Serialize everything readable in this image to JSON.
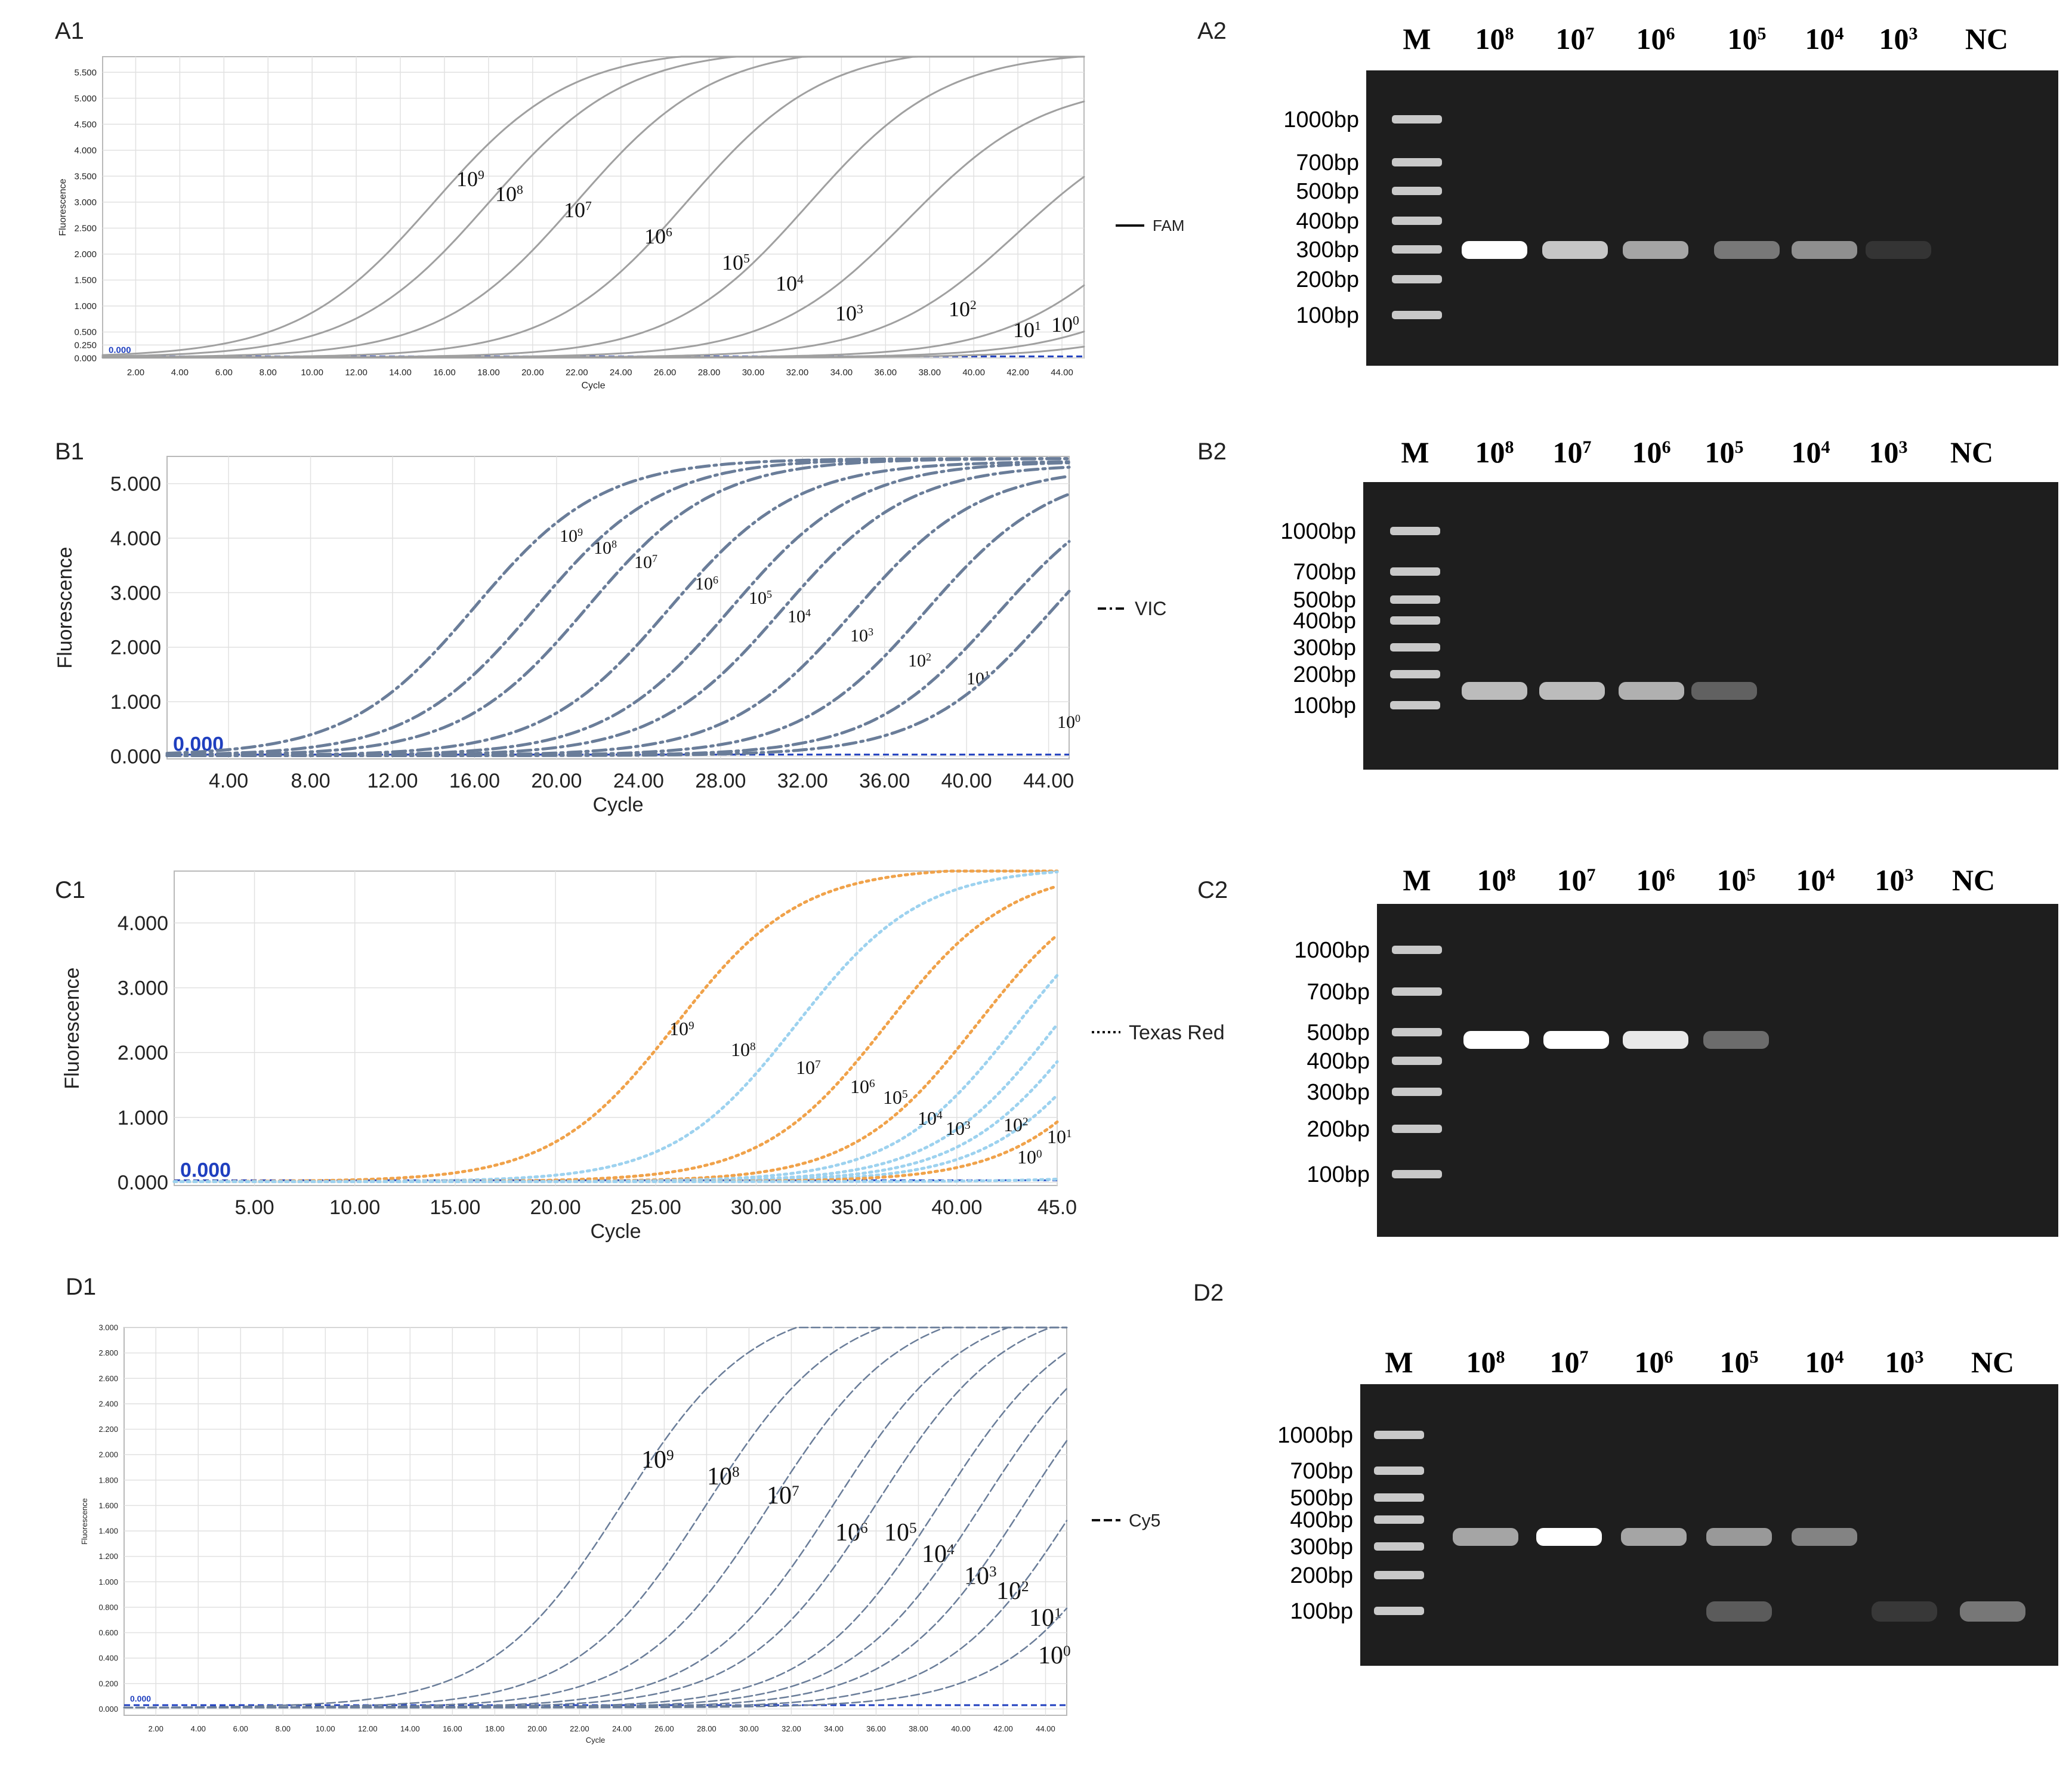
{
  "panels": {
    "A1": "A1",
    "A2": "A2",
    "B1": "B1",
    "B2": "B2",
    "C1": "C1",
    "C2": "C2",
    "D1": "D1",
    "D2": "D2"
  },
  "chart_data": [
    {
      "id": "A1",
      "type": "line",
      "title": "",
      "xlabel": "Cycle",
      "ylabel": "Fluorescence",
      "xlim": [
        0.5,
        45
      ],
      "ylim": [
        0,
        5.8
      ],
      "xticks": [
        "2.00",
        "4.00",
        "6.00",
        "8.00",
        "10.00",
        "12.00",
        "14.00",
        "16.00",
        "18.00",
        "20.00",
        "22.00",
        "24.00",
        "26.00",
        "28.00",
        "30.00",
        "32.00",
        "34.00",
        "36.00",
        "38.00",
        "40.00",
        "42.00",
        "44.00"
      ],
      "yticks": [
        "0.000",
        "0.250",
        "0.500",
        "1.000",
        "1.500",
        "2.000",
        "2.500",
        "3.000",
        "3.500",
        "4.000",
        "4.500",
        "5.000",
        "5.500"
      ],
      "threshold_label": "0.000",
      "legend": {
        "name": "FAM",
        "style": "solid",
        "position": "right"
      },
      "style": "solid",
      "color": "#a0a0a0",
      "grid": true,
      "series": [
        {
          "label": "9",
          "mid": 15.5,
          "max": 5.95
        },
        {
          "label": "8",
          "mid": 18.0,
          "max": 5.95
        },
        {
          "label": "7",
          "mid": 22.0,
          "max": 6.0
        },
        {
          "label": "6",
          "mid": 27.0,
          "max": 6.0
        },
        {
          "label": "5",
          "mid": 32.5,
          "max": 5.9
        },
        {
          "label": "4",
          "mid": 37.0,
          "max": 5.3
        },
        {
          "label": "3",
          "mid": 42.0,
          "max": 4.8
        },
        {
          "label": "2",
          "mid": 47.5,
          "max": 4.5
        },
        {
          "label": "1",
          "mid": 50.0,
          "max": 3.0
        },
        {
          "label": "0",
          "mid": 52.0,
          "max": 2.2
        }
      ]
    },
    {
      "id": "B1",
      "type": "line",
      "title": "",
      "xlabel": "Cycle",
      "ylabel": "Fluorescence",
      "xlim": [
        1,
        45
      ],
      "ylim": [
        -0.05,
        5.5
      ],
      "xticks": [
        "4.00",
        "8.00",
        "12.00",
        "16.00",
        "20.00",
        "24.00",
        "28.00",
        "32.00",
        "36.00",
        "40.00",
        "44.00"
      ],
      "yticks": [
        "0.000",
        "1.000",
        "2.000",
        "3.000",
        "4.000",
        "5.000"
      ],
      "threshold_label": "0.000",
      "legend": {
        "name": "VIC",
        "style": "dashdot",
        "position": "right"
      },
      "style": "dashdot",
      "color": "#6a7d99",
      "grid": true,
      "series": [
        {
          "label": "9",
          "mid": 16.0,
          "max": 5.45
        },
        {
          "label": "8",
          "mid": 19.0,
          "max": 5.45
        },
        {
          "label": "7",
          "mid": 21.5,
          "max": 5.45
        },
        {
          "label": "6",
          "mid": 25.5,
          "max": 5.4
        },
        {
          "label": "5",
          "mid": 28.5,
          "max": 5.4
        },
        {
          "label": "4",
          "mid": 31.0,
          "max": 5.35
        },
        {
          "label": "3",
          "mid": 34.5,
          "max": 5.3
        },
        {
          "label": "2",
          "mid": 38.0,
          "max": 5.3
        },
        {
          "label": "1",
          "mid": 41.5,
          "max": 5.2
        },
        {
          "label": "0",
          "mid": 44.0,
          "max": 5.2
        }
      ]
    },
    {
      "id": "C1",
      "type": "line",
      "title": "",
      "xlabel": "Cycle",
      "ylabel": "Fluorescence",
      "xlim": [
        1,
        45
      ],
      "ylim": [
        -0.05,
        4.8
      ],
      "xticks": [
        "5.00",
        "10.00",
        "15.00",
        "20.00",
        "25.00",
        "30.00",
        "35.00",
        "40.00",
        "45.0"
      ],
      "yticks": [
        "0.000",
        "1.000",
        "2.000",
        "3.000",
        "4.000"
      ],
      "threshold_label": "0.000",
      "legend": {
        "name": "Texas Red",
        "style": "dotted",
        "position": "right"
      },
      "style": "dotted",
      "grid": true,
      "series": [
        {
          "label": "9",
          "mid": 26.0,
          "max": 4.85,
          "color": "#f0a24a"
        },
        {
          "label": "8",
          "mid": 32.0,
          "max": 4.85,
          "color": "#9dd2ef"
        },
        {
          "label": "7",
          "mid": 36.5,
          "max": 4.85,
          "color": "#f0a24a"
        },
        {
          "label": "6",
          "mid": 41.0,
          "max": 4.85,
          "color": "#f0a24a"
        },
        {
          "label": "5",
          "mid": 43.0,
          "max": 4.85,
          "color": "#9dd2ef"
        },
        {
          "label": "4",
          "mid": 45.0,
          "max": 4.85,
          "color": "#9dd2ef"
        },
        {
          "label": "3",
          "mid": 46.5,
          "max": 4.85,
          "color": "#9dd2ef"
        },
        {
          "label": "2",
          "mid": 48.0,
          "max": 4.85,
          "color": "#9dd2ef"
        },
        {
          "label": "1",
          "mid": 49.5,
          "max": 4.85,
          "color": "#f0a24a"
        },
        {
          "label": "0",
          "mid": 60.0,
          "max": 4.85,
          "color": "#9dd2ef"
        }
      ]
    },
    {
      "id": "D1",
      "type": "line",
      "title": "",
      "xlabel": "Cycle",
      "ylabel": "Fluorescence",
      "xlim": [
        0.5,
        45
      ],
      "ylim": [
        -0.05,
        3.0
      ],
      "xticks": [
        "2.00",
        "4.00",
        "6.00",
        "8.00",
        "10.00",
        "12.00",
        "14.00",
        "16.00",
        "18.00",
        "20.00",
        "22.00",
        "24.00",
        "26.00",
        "28.00",
        "30.00",
        "32.00",
        "34.00",
        "36.00",
        "38.00",
        "40.00",
        "42.00",
        "44.00"
      ],
      "yticks": [
        "0.000",
        "0.200",
        "0.400",
        "0.600",
        "0.800",
        "1.000",
        "1.200",
        "1.400",
        "1.600",
        "1.800",
        "2.000",
        "2.200",
        "2.400",
        "2.600",
        "2.800",
        "3.000"
      ],
      "threshold_label": "0.000",
      "legend": {
        "name": "Cy5",
        "style": "dashed",
        "position": "right"
      },
      "style": "dashed",
      "color": "#6a7d99",
      "grid": true,
      "series": [
        {
          "label": "9",
          "mid": 24.0,
          "max": 3.2
        },
        {
          "label": "8",
          "mid": 28.0,
          "max": 3.2
        },
        {
          "label": "7",
          "mid": 31.0,
          "max": 3.2
        },
        {
          "label": "6",
          "mid": 34.0,
          "max": 3.2
        },
        {
          "label": "5",
          "mid": 36.0,
          "max": 3.2
        },
        {
          "label": "4",
          "mid": 39.0,
          "max": 3.2
        },
        {
          "label": "3",
          "mid": 41.0,
          "max": 3.2
        },
        {
          "label": "2",
          "mid": 43.0,
          "max": 3.2
        },
        {
          "label": "1",
          "mid": 45.5,
          "max": 3.2
        },
        {
          "label": "0",
          "mid": 48.5,
          "max": 3.2
        }
      ]
    }
  ],
  "gels": [
    {
      "id": "A2",
      "lanes": [
        {
          "label": "M"
        },
        {
          "label": "10",
          "sup": "8"
        },
        {
          "label": "10",
          "sup": "7"
        },
        {
          "label": "10",
          "sup": "6"
        },
        {
          "label": "10",
          "sup": "5"
        },
        {
          "label": "10",
          "sup": "4"
        },
        {
          "label": "10",
          "sup": "3"
        },
        {
          "label": "NC"
        }
      ],
      "markers": [
        "1000bp",
        "700bp",
        "500bp",
        "400bp",
        "300bp",
        "200bp",
        "100bp"
      ],
      "bands": [
        1.0,
        0.75,
        0.6,
        0.4,
        0.5,
        0.1,
        0.0
      ],
      "band_size": "300bp"
    },
    {
      "id": "B2",
      "lanes": [
        {
          "label": "M"
        },
        {
          "label": "10",
          "sup": "8"
        },
        {
          "label": "10",
          "sup": "7"
        },
        {
          "label": "10",
          "sup": "6"
        },
        {
          "label": "10",
          "sup": "5"
        },
        {
          "label": "10",
          "sup": "4"
        },
        {
          "label": "10",
          "sup": "3"
        },
        {
          "label": "NC"
        }
      ],
      "markers": [
        "1000bp",
        "700bp",
        "500bp",
        "400bp",
        "300bp",
        "200bp",
        "100bp"
      ],
      "bands": [
        0.7,
        0.7,
        0.65,
        0.3,
        0.0,
        0.0,
        0.0
      ],
      "band_size": "100bp"
    },
    {
      "id": "C2",
      "lanes": [
        {
          "label": "M"
        },
        {
          "label": "10",
          "sup": "8"
        },
        {
          "label": "10",
          "sup": "7"
        },
        {
          "label": "10",
          "sup": "6"
        },
        {
          "label": "10",
          "sup": "5"
        },
        {
          "label": "10",
          "sup": "4"
        },
        {
          "label": "10",
          "sup": "3"
        },
        {
          "label": "NC"
        }
      ],
      "markers": [
        "1000bp",
        "700bp",
        "500bp",
        "400bp",
        "300bp",
        "200bp",
        "100bp"
      ],
      "bands": [
        1.0,
        1.0,
        0.9,
        0.35,
        0.0,
        0.0,
        0.0
      ],
      "band_size": "500bp"
    },
    {
      "id": "D2",
      "lanes": [
        {
          "label": "M"
        },
        {
          "label": "10",
          "sup": "8"
        },
        {
          "label": "10",
          "sup": "7"
        },
        {
          "label": "10",
          "sup": "6"
        },
        {
          "label": "10",
          "sup": "5"
        },
        {
          "label": "10",
          "sup": "4"
        },
        {
          "label": "10",
          "sup": "3"
        },
        {
          "label": "NC"
        }
      ],
      "markers": [
        "1000bp",
        "700bp",
        "500bp",
        "400bp",
        "300bp",
        "200bp",
        "100bp"
      ],
      "bands": [
        0.6,
        1.0,
        0.6,
        0.55,
        0.45,
        0.0,
        0.0
      ],
      "band_size": "300bp",
      "primer_dimer": [
        0.0,
        0.0,
        0.0,
        0.35,
        0.0,
        0.15,
        0.5
      ]
    }
  ]
}
